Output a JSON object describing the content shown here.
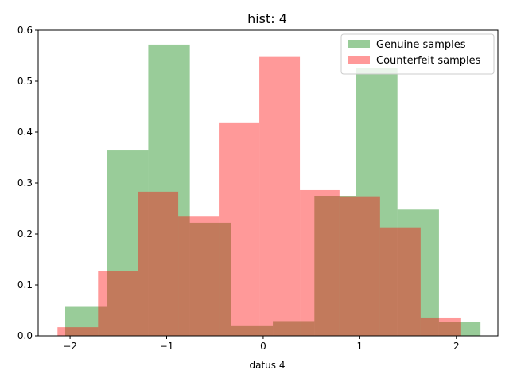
{
  "chart_data": {
    "type": "bar",
    "title": "hist: 4",
    "xlabel": "datus 4",
    "ylabel": "",
    "xlim": [
      -2.33,
      2.43
    ],
    "ylim": [
      0,
      0.6
    ],
    "xticks": [
      -2,
      -1,
      0,
      1,
      2
    ],
    "xtick_labels": [
      "−2",
      "−1",
      "0",
      "1",
      "2"
    ],
    "yticks": [
      0.0,
      0.1,
      0.2,
      0.3,
      0.4,
      0.5,
      0.6
    ],
    "ytick_labels": [
      "0.0",
      "0.1",
      "0.2",
      "0.3",
      "0.4",
      "0.5",
      "0.6"
    ],
    "legend_position": "upper-right",
    "series": [
      {
        "name": "Genuine samples",
        "color": "#008000",
        "alpha": 0.4,
        "bin_edges": [
          -2.05,
          -1.62,
          -1.19,
          -0.76,
          -0.33,
          0.1,
          0.53,
          0.96,
          1.39,
          1.82,
          2.25
        ],
        "values": [
          0.057,
          0.364,
          0.572,
          0.222,
          0.019,
          0.029,
          0.275,
          0.525,
          0.248,
          0.028
        ]
      },
      {
        "name": "Counterfeit samples",
        "color": "#ff0000",
        "alpha": 0.4,
        "bin_edges": [
          -2.13,
          -1.71,
          -1.3,
          -0.88,
          -0.46,
          -0.04,
          0.38,
          0.79,
          1.21,
          1.63,
          2.05
        ],
        "values": [
          0.017,
          0.127,
          0.283,
          0.234,
          0.419,
          0.549,
          0.286,
          0.274,
          0.213,
          0.036
        ]
      }
    ]
  }
}
